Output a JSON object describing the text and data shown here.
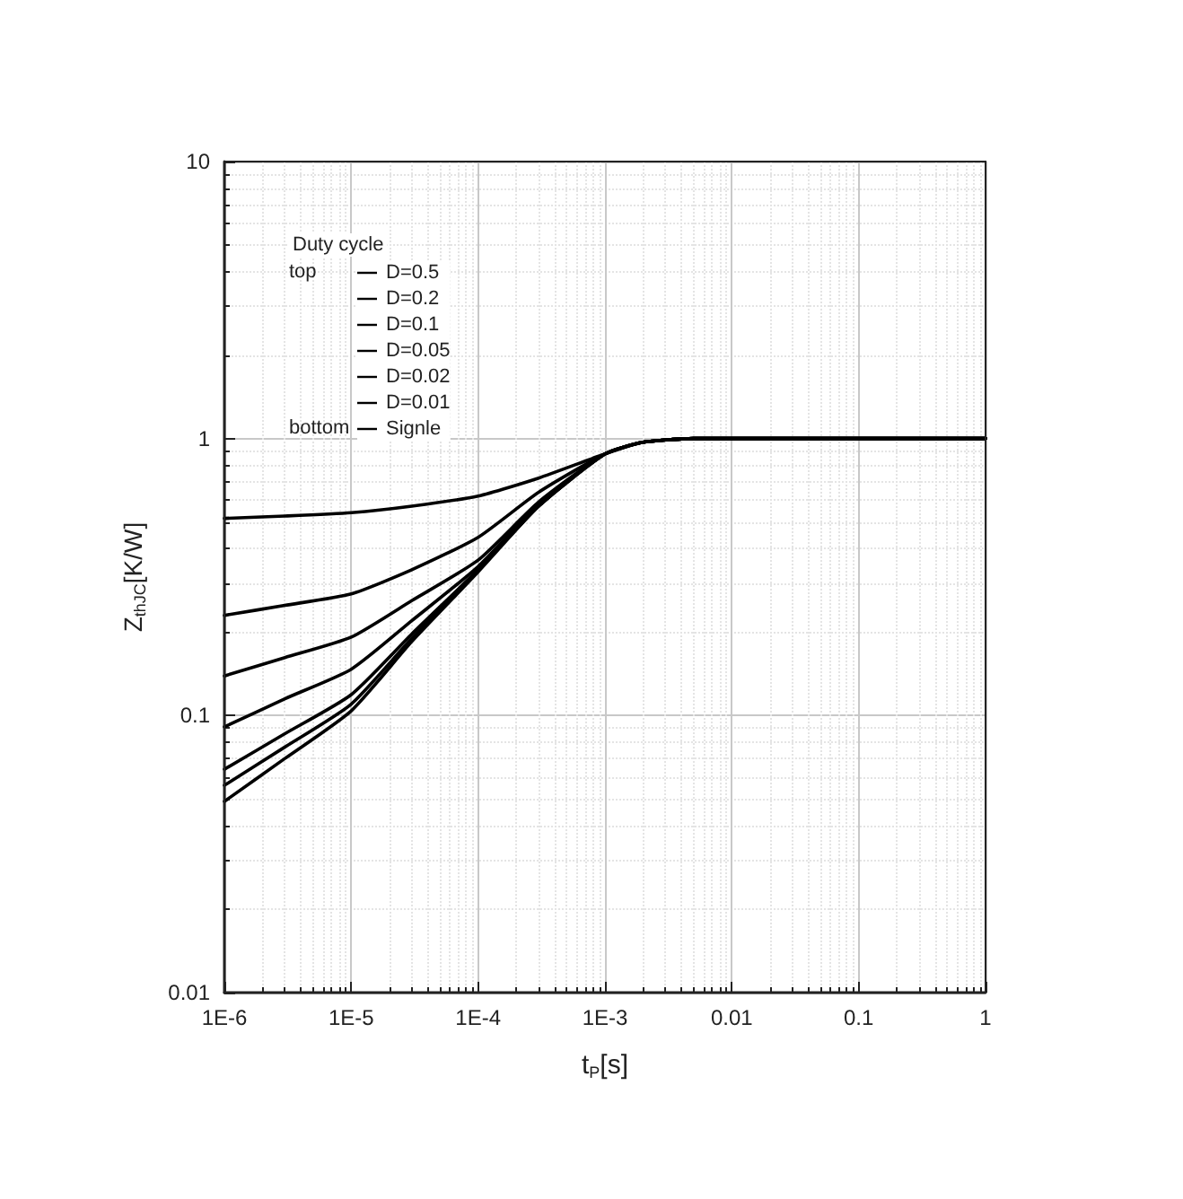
{
  "chart_data": {
    "type": "line",
    "xlabel": "t$_{P}$[s]",
    "ylabel": "Z$_{thJC}$[K/W]",
    "legend_title": "Duty cycle",
    "annotations": [
      "top",
      "bottom"
    ],
    "log": "xy",
    "grid": true,
    "legend": "top left",
    "marker": "none",
    "line_style": "solid",
    "xlim": [
      1e-06,
      1
    ],
    "xticks": [
      {
        "value": 1e-06,
        "label": "1E-6"
      },
      {
        "value": 1e-05,
        "label": "1E-5"
      },
      {
        "value": 0.0001,
        "label": "1E-4"
      },
      {
        "value": 0.001,
        "label": "1E-3"
      },
      0.01,
      0.1,
      1
    ],
    "ylim": [
      0.01,
      10
    ],
    "yticks": [
      0.01,
      0.1,
      1,
      10
    ],
    "x": [
      1e-06,
      3e-06,
      1e-05,
      3e-05,
      0.0001,
      0.0003,
      0.001,
      0.002,
      0.005,
      0.01,
      1
    ],
    "series": [
      {
        "name": "D=0.5",
        "color": "#000000",
        "values": [
          0.515,
          0.525,
          0.54,
          0.57,
          0.62,
          0.72,
          0.88,
          0.97,
          1.0,
          1.0,
          1.0
        ]
      },
      {
        "name": "D=0.2",
        "color": "#000000",
        "values": [
          0.23,
          0.25,
          0.275,
          0.336,
          0.44,
          0.64,
          0.88,
          0.97,
          1.0,
          1.0,
          1.0
        ]
      },
      {
        "name": "D=0.1",
        "color": "#000000",
        "values": [
          0.139,
          0.162,
          0.192,
          0.26,
          0.364,
          0.59,
          0.88,
          0.97,
          1.0,
          1.0,
          1.0
        ]
      },
      {
        "name": "D=0.05",
        "color": "#000000",
        "values": [
          0.091,
          0.115,
          0.147,
          0.22,
          0.345,
          0.58,
          0.88,
          0.97,
          1.0,
          1.0,
          1.0
        ]
      },
      {
        "name": "D=0.02",
        "color": "#000000",
        "values": [
          0.064,
          0.086,
          0.119,
          0.197,
          0.336,
          0.57,
          0.88,
          0.97,
          1.0,
          1.0,
          1.0
        ]
      },
      {
        "name": "D=0.01",
        "color": "#000000",
        "values": [
          0.056,
          0.077,
          0.11,
          0.19,
          0.333,
          0.57,
          0.88,
          0.97,
          1.0,
          1.0,
          1.0
        ]
      },
      {
        "name": "Signle",
        "color": "#000000",
        "values": [
          0.049,
          0.07,
          0.104,
          0.185,
          0.33,
          0.57,
          0.88,
          0.97,
          1.0,
          1.0,
          1.0
        ]
      }
    ]
  }
}
